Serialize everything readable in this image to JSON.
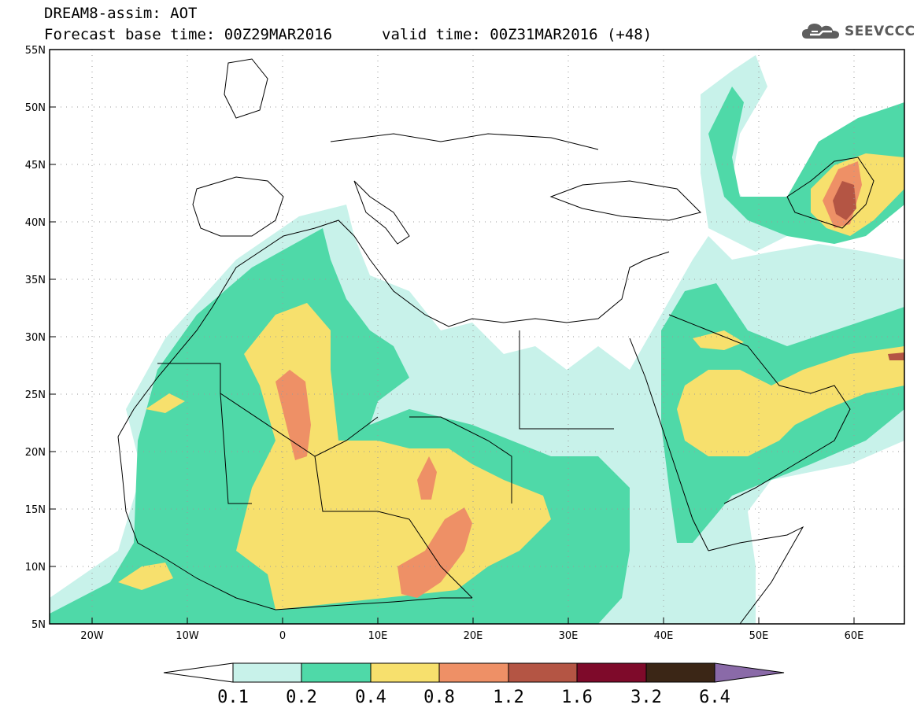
{
  "header": {
    "title_line1": "DREAM8-assim: AOT",
    "title_line2": "Forecast base time: 00Z29MAR2016",
    "valid_time": "valid time: 00Z31MAR2016 (+48)",
    "logo_text": "SEEVCCC"
  },
  "map": {
    "lat_labels": [
      "55N",
      "50N",
      "45N",
      "40N",
      "35N",
      "30N",
      "25N",
      "20N",
      "15N",
      "10N",
      "5N"
    ],
    "lon_labels": [
      "20W",
      "10W",
      "0",
      "10E",
      "20E",
      "30E",
      "40E",
      "50E",
      "60E"
    ],
    "lat_range": [
      5,
      55
    ],
    "lon_range": [
      -25,
      65
    ],
    "gridlines": "dotted",
    "fill_colors": {
      "0.1": "#c8f2ea",
      "0.2": "#4fd9a8",
      "0.4": "#f7e06d",
      "0.8": "#ee9066",
      "1.2": "#c75a4a",
      "1.6": "#8b0f2b",
      "3.2": "#3e2a1c",
      "6.4": "#8a6aa8"
    }
  },
  "colorbar": {
    "labels": [
      "0.1",
      "0.2",
      "0.4",
      "0.8",
      "1.2",
      "1.6",
      "3.2",
      "6.4"
    ],
    "colors": [
      "#c8f2ea",
      "#4fd9a8",
      "#f7e06d",
      "#ee9066",
      "#b45544",
      "#7e0a2a",
      "#3b2616",
      "#8a6aa8"
    ]
  }
}
